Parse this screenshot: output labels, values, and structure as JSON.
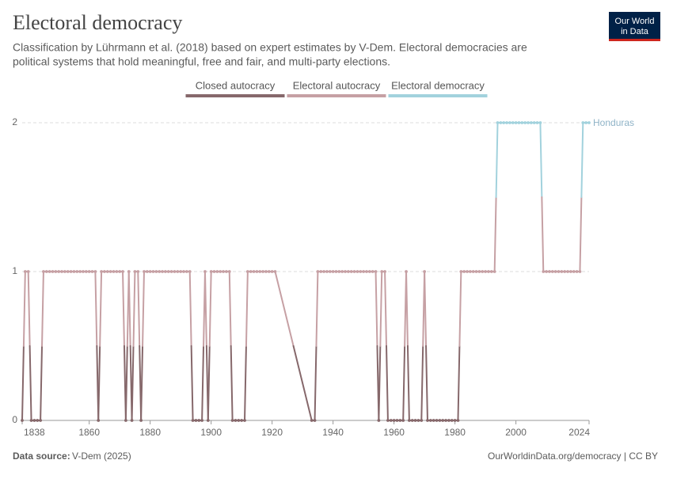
{
  "chart_data": {
    "type": "line",
    "title": "Electoral democracy",
    "subtitle": [
      "Classification by Lührmann et al. (2018) based on expert estimates by V-Dem. Electoral democracies are",
      "political systems that hold meaningful, free and fair, and multi-party elections."
    ],
    "legend": [
      {
        "name": "Closed autocracy",
        "color": "#86686b"
      },
      {
        "name": "Electoral autocracy",
        "color": "#c6a0a4"
      },
      {
        "name": "Electoral democracy",
        "color": "#a2d2dd"
      }
    ],
    "series": [
      {
        "name": "Honduras",
        "color": "#8fb3c7",
        "x": [
          1838,
          1839,
          1840,
          1841,
          1842,
          1843,
          1844,
          1845,
          1846,
          1847,
          1848,
          1849,
          1850,
          1851,
          1852,
          1853,
          1854,
          1855,
          1856,
          1857,
          1858,
          1859,
          1860,
          1861,
          1862,
          1863,
          1864,
          1865,
          1866,
          1867,
          1868,
          1869,
          1870,
          1871,
          1872,
          1873,
          1874,
          1875,
          1876,
          1877,
          1878,
          1879,
          1880,
          1881,
          1882,
          1883,
          1884,
          1885,
          1886,
          1887,
          1888,
          1889,
          1890,
          1891,
          1892,
          1893,
          1894,
          1895,
          1896,
          1897,
          1898,
          1899,
          1900,
          1901,
          1902,
          1903,
          1904,
          1905,
          1906,
          1907,
          1908,
          1909,
          1910,
          1911,
          1912,
          1913,
          1914,
          1915,
          1916,
          1917,
          1918,
          1919,
          1920,
          1921,
          1933,
          1934,
          1935,
          1936,
          1937,
          1938,
          1939,
          1940,
          1941,
          1942,
          1943,
          1944,
          1945,
          1946,
          1947,
          1948,
          1949,
          1950,
          1951,
          1952,
          1953,
          1954,
          1955,
          1956,
          1957,
          1958,
          1959,
          1960,
          1961,
          1962,
          1963,
          1964,
          1965,
          1966,
          1967,
          1968,
          1969,
          1970,
          1971,
          1972,
          1973,
          1974,
          1975,
          1976,
          1977,
          1978,
          1979,
          1980,
          1981,
          1982,
          1983,
          1984,
          1985,
          1986,
          1987,
          1988,
          1989,
          1990,
          1991,
          1992,
          1993,
          1994,
          1995,
          1996,
          1997,
          1998,
          1999,
          2000,
          2001,
          2002,
          2003,
          2004,
          2005,
          2006,
          2007,
          2008,
          2009,
          2010,
          2011,
          2012,
          2013,
          2014,
          2015,
          2016,
          2017,
          2018,
          2019,
          2020,
          2021,
          2022,
          2023,
          2024
        ],
        "values": [
          0,
          1,
          1,
          0,
          0,
          0,
          0,
          1,
          1,
          1,
          1,
          1,
          1,
          1,
          1,
          1,
          1,
          1,
          1,
          1,
          1,
          1,
          1,
          1,
          1,
          0,
          1,
          1,
          1,
          1,
          1,
          1,
          1,
          1,
          0,
          1,
          0,
          1,
          1,
          0,
          1,
          1,
          1,
          1,
          1,
          1,
          1,
          1,
          1,
          1,
          1,
          1,
          1,
          1,
          1,
          1,
          0,
          0,
          0,
          0,
          1,
          0,
          1,
          1,
          1,
          1,
          1,
          1,
          1,
          0,
          0,
          0,
          0,
          0,
          1,
          1,
          1,
          1,
          1,
          1,
          1,
          1,
          1,
          1,
          0,
          0,
          1,
          1,
          1,
          1,
          1,
          1,
          1,
          1,
          1,
          1,
          1,
          1,
          1,
          1,
          1,
          1,
          1,
          1,
          1,
          1,
          0,
          1,
          1,
          0,
          0,
          0,
          0,
          0,
          0,
          1,
          0,
          0,
          0,
          0,
          0,
          1,
          0,
          0,
          0,
          0,
          0,
          0,
          0,
          0,
          0,
          0,
          0,
          1,
          1,
          1,
          1,
          1,
          1,
          1,
          1,
          1,
          1,
          1,
          1,
          2,
          2,
          2,
          2,
          2,
          2,
          2,
          2,
          2,
          2,
          2,
          2,
          2,
          2,
          2,
          1,
          1,
          1,
          1,
          1,
          1,
          1,
          1,
          1,
          1,
          1,
          1,
          1,
          2,
          2,
          2
        ]
      }
    ],
    "xlim": [
      1838,
      2024
    ],
    "xticks": [
      1838,
      1860,
      1880,
      1900,
      1920,
      1940,
      1960,
      1980,
      2000,
      2024
    ],
    "ylim": [
      0,
      2
    ],
    "yticks": [
      0,
      1,
      2
    ],
    "grid": true,
    "source_label": "Data source:",
    "source": "V-Dem (2025)",
    "url": "OurWorldinData.org/democracy | CC BY",
    "logo": [
      "Our World",
      "in Data"
    ]
  }
}
